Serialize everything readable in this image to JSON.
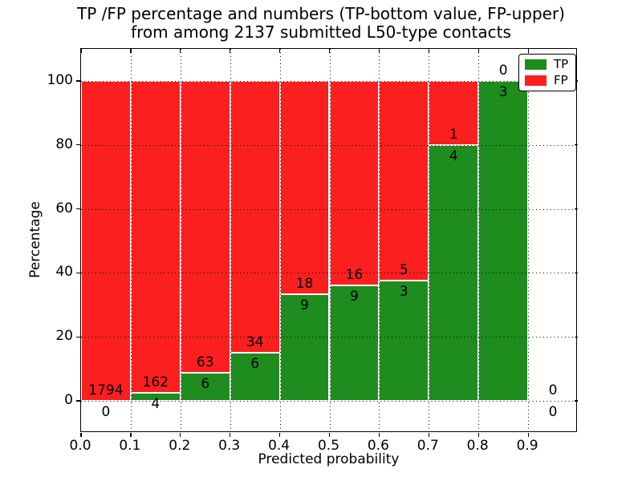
{
  "figure": {
    "title_line1": "TP /FP percentage and numbers (TP-bottom value, FP-upper)",
    "title_line2": "from among 2137 submitted L50-type contacts"
  },
  "chart_data": {
    "type": "bar",
    "subtype": "stacked-percentage-histogram",
    "title": "TP /FP percentage and numbers (TP-bottom value, FP-upper) from among 2137 submitted L50-type contacts",
    "xlabel": "Predicted probability",
    "ylabel": "Percentage",
    "total_contacts": 2137,
    "xlim": [
      0.0,
      1.0
    ],
    "ylim": [
      -10,
      110
    ],
    "grid": "dotted",
    "x_ticks": [
      0.0,
      0.1,
      0.2,
      0.3,
      0.4,
      0.5,
      0.6,
      0.7,
      0.8,
      0.9
    ],
    "x_tick_labels": [
      "0.0",
      "0.1",
      "0.2",
      "0.3",
      "0.4",
      "0.5",
      "0.6",
      "0.7",
      "0.8",
      "0.9"
    ],
    "y_ticks": [
      0,
      20,
      40,
      60,
      80,
      100
    ],
    "y_tick_labels": [
      "0",
      "20",
      "40",
      "60",
      "80",
      "100"
    ],
    "legend": {
      "position": "upper right",
      "entries": [
        {
          "label": "TP",
          "color": "#1e8c1e"
        },
        {
          "label": "FP",
          "color": "#fb1f1f"
        }
      ]
    },
    "colors": {
      "tp": "#1e8c1e",
      "fp": "#fb1f1f",
      "bar_edge": "#ffffff",
      "grid": "#000000"
    },
    "bins": [
      {
        "x_start": 0.0,
        "x_end": 0.1,
        "tp_count": 0,
        "fp_count": 1794,
        "tp_pct": 0.0,
        "fp_pct": 100.0
      },
      {
        "x_start": 0.1,
        "x_end": 0.2,
        "tp_count": 4,
        "fp_count": 162,
        "tp_pct": 2.41,
        "fp_pct": 97.59
      },
      {
        "x_start": 0.2,
        "x_end": 0.3,
        "tp_count": 6,
        "fp_count": 63,
        "tp_pct": 8.7,
        "fp_pct": 91.3
      },
      {
        "x_start": 0.3,
        "x_end": 0.4,
        "tp_count": 6,
        "fp_count": 34,
        "tp_pct": 15.0,
        "fp_pct": 85.0
      },
      {
        "x_start": 0.4,
        "x_end": 0.5,
        "tp_count": 9,
        "fp_count": 18,
        "tp_pct": 33.33,
        "fp_pct": 66.67
      },
      {
        "x_start": 0.5,
        "x_end": 0.6,
        "tp_count": 9,
        "fp_count": 16,
        "tp_pct": 36.0,
        "fp_pct": 64.0
      },
      {
        "x_start": 0.6,
        "x_end": 0.7,
        "tp_count": 3,
        "fp_count": 5,
        "tp_pct": 37.5,
        "fp_pct": 62.5
      },
      {
        "x_start": 0.7,
        "x_end": 0.8,
        "tp_count": 4,
        "fp_count": 1,
        "tp_pct": 80.0,
        "fp_pct": 20.0
      },
      {
        "x_start": 0.8,
        "x_end": 0.9,
        "tp_count": 3,
        "fp_count": 0,
        "tp_pct": 100.0,
        "fp_pct": 0.0
      },
      {
        "x_start": 0.9,
        "x_end": 1.0,
        "tp_count": 0,
        "fp_count": 0,
        "tp_pct": null,
        "fp_pct": null
      }
    ]
  }
}
